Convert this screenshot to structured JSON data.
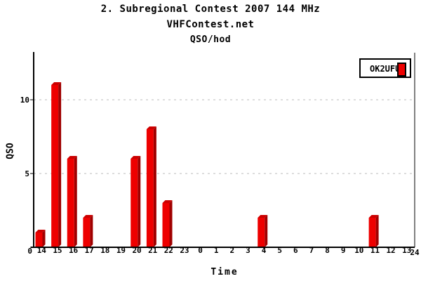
{
  "header": {
    "title": "2. Subregional Contest 2007 144 MHz",
    "subtitle": "VHFContest.net",
    "subtitle2": "QSO/hod"
  },
  "legend": {
    "label": "OK2UFU",
    "position": "top-right",
    "marker_color": "#ee0000"
  },
  "chart_data": {
    "type": "bar",
    "title": "2. Subregional Contest 2007 144 MHz",
    "subtitle": "VHFContest.net",
    "subtitle2": "QSO/hod",
    "xlabel": "Time",
    "ylabel": "QSO",
    "categories": [
      "14",
      "15",
      "16",
      "17",
      "18",
      "19",
      "20",
      "21",
      "22",
      "23",
      "0",
      "1",
      "2",
      "3",
      "4",
      "5",
      "6",
      "7",
      "8",
      "9",
      "10",
      "11",
      "12",
      "13"
    ],
    "values": [
      1,
      11,
      6,
      2,
      0,
      0,
      6,
      8,
      3,
      0,
      0,
      0,
      0,
      0,
      2,
      0,
      0,
      0,
      0,
      0,
      0,
      2,
      0,
      0
    ],
    "series": [
      {
        "name": "OK2UFU",
        "values": [
          1,
          11,
          6,
          2,
          0,
          0,
          6,
          8,
          3,
          0,
          0,
          0,
          0,
          0,
          2,
          0,
          0,
          0,
          0,
          0,
          0,
          2,
          0,
          0
        ]
      }
    ],
    "yticks": [
      0,
      5,
      10
    ],
    "ylim": [
      0,
      13
    ],
    "x_origin_label": "0",
    "x_end_label": "24",
    "grid": "horizontal dashed at yticks",
    "legend_position": "top-right",
    "colors": {
      "bar_front": "#ee0000",
      "bar_side": "#a00000",
      "bar_top": "#cc0000",
      "gridline": "#bbbbbb",
      "axis": "#000000",
      "background": "#ffffff"
    }
  }
}
